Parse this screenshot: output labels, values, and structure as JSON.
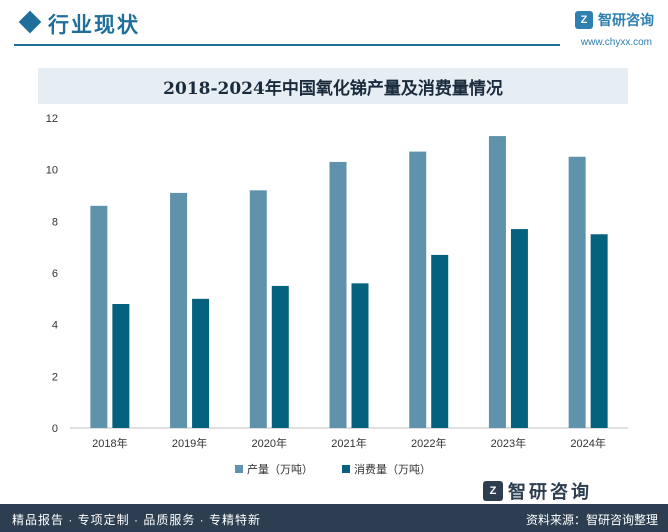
{
  "header": {
    "section_title": "行业现状",
    "brand_name": "智研咨询",
    "brand_url": "www.chyxx.com"
  },
  "footer": {
    "tagline": "精品报告 · 专项定制 · 品质服务 · 专精特新",
    "source": "资料来源：智研咨询整理",
    "logo_text": "智研咨询"
  },
  "colors": {
    "production": "#5f93ab",
    "consumption": "#05627f",
    "accent": "#1f6f9a"
  },
  "chart_data": {
    "type": "bar",
    "title": "2018-2024年中国氧化锑产量及消费量情况",
    "xlabel": "",
    "ylabel": "",
    "categories": [
      "2018年",
      "2019年",
      "2020年",
      "2021年",
      "2022年",
      "2023年",
      "2024年"
    ],
    "ylim": [
      0,
      12
    ],
    "yticks": [
      0,
      2,
      4,
      6,
      8,
      10,
      12
    ],
    "grid": false,
    "legend": "bottom",
    "series": [
      {
        "name": "产量（万吨）",
        "values": [
          8.6,
          9.1,
          9.2,
          10.3,
          10.7,
          11.3,
          10.5
        ]
      },
      {
        "name": "消费量（万吨）",
        "values": [
          4.8,
          5.0,
          5.5,
          5.6,
          6.7,
          7.7,
          7.5
        ]
      }
    ]
  }
}
